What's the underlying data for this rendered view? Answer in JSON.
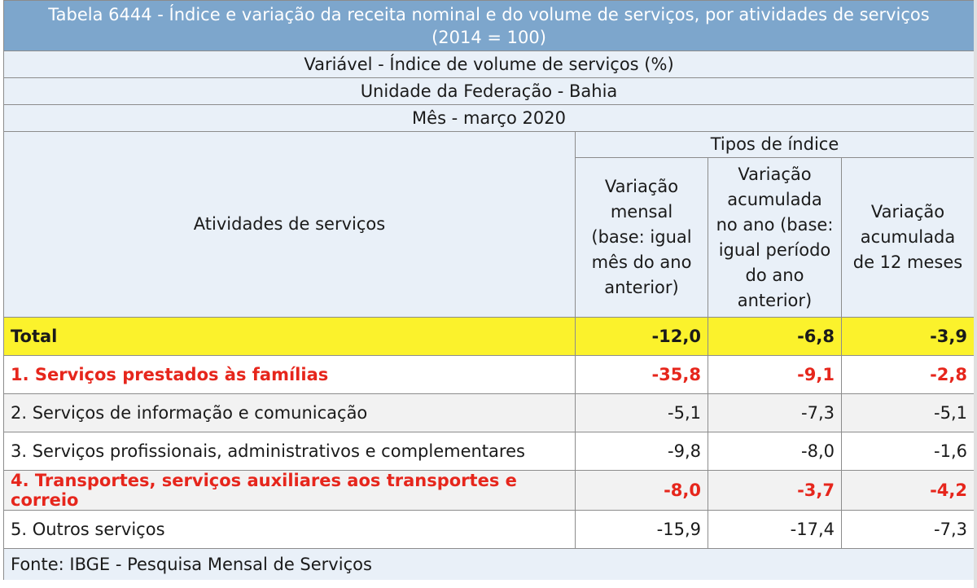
{
  "table": {
    "title_line1": "Tabela 6444 - Índice e variação da receita nominal e do volume de serviços, por atividades de serviços",
    "title_line2": "(2014 = 100)",
    "variavel": "Variável - Índice de volume de serviços (%)",
    "unidade": "Unidade da Federação - Bahia",
    "mes": "Mês - março 2020",
    "header_group": "Tipos de índice",
    "header_activity": "Atividades de serviços",
    "header_cols": [
      "Variação mensal (base: igual mês do ano anterior)",
      "Variação acumulada no ano (base: igual período do ano anterior)",
      "Variação acumulada de 12 meses"
    ],
    "rows": [
      {
        "label": "Total",
        "v1": "-12,0",
        "v2": "-6,8",
        "v3": "-3,9"
      },
      {
        "label": "1. Serviços prestados às famílias",
        "v1": "-35,8",
        "v2": "-9,1",
        "v3": "-2,8"
      },
      {
        "label": "2. Serviços de informação e comunicação",
        "v1": "-5,1",
        "v2": "-7,3",
        "v3": "-5,1"
      },
      {
        "label": "3. Serviços profissionais, administrativos e complementares",
        "v1": "-9,8",
        "v2": "-8,0",
        "v3": "-1,6"
      },
      {
        "label": "4. Transportes, serviços auxiliares aos transportes e correio",
        "v1": "-8,0",
        "v2": "-3,7",
        "v3": "-4,2"
      },
      {
        "label": "5. Outros serviços",
        "v1": "-15,9",
        "v2": "-17,4",
        "v3": "-7,3"
      }
    ],
    "source": "Fonte: IBGE - Pesquisa Mensal de Serviços"
  },
  "colors": {
    "title_bg": "#7da6cc",
    "header_bg": "#e9f0f8",
    "total_bg": "#fbf22c",
    "highlight_text": "#e6261c"
  }
}
